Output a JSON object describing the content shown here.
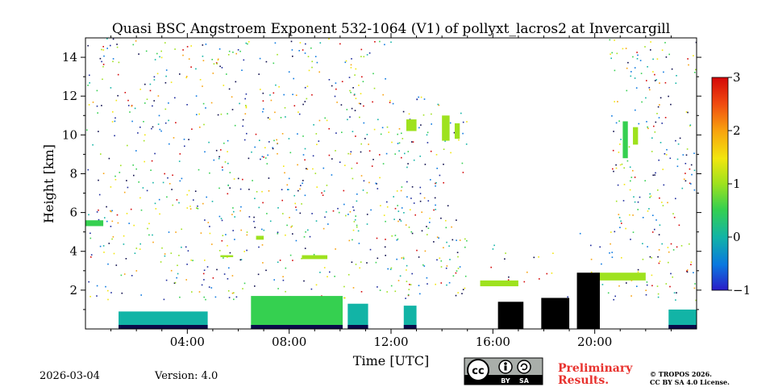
{
  "chart_data": {
    "type": "heatmap",
    "title": "Quasi BSC Angstroem Exponent 532-1064 (V1) of pollyxt_lacros2 at Invercargill",
    "xlabel": "Time [UTC]",
    "ylabel": "Height [km]",
    "xlim_hours": [
      0,
      24
    ],
    "ylim_km": [
      0,
      15
    ],
    "xticks": [
      {
        "value": 4,
        "label": "04:00"
      },
      {
        "value": 8,
        "label": "08:00"
      },
      {
        "value": 12,
        "label": "12:00"
      },
      {
        "value": 16,
        "label": "16:00"
      },
      {
        "value": 20,
        "label": "20:00"
      }
    ],
    "yticks": [
      {
        "value": 2,
        "label": "2"
      },
      {
        "value": 4,
        "label": "4"
      },
      {
        "value": 6,
        "label": "6"
      },
      {
        "value": 8,
        "label": "8"
      },
      {
        "value": 10,
        "label": "10"
      },
      {
        "value": 12,
        "label": "12"
      },
      {
        "value": 14,
        "label": "14"
      }
    ],
    "colorbar": {
      "range": [
        -1,
        3
      ],
      "ticks": [
        {
          "value": -1,
          "label": "−1"
        },
        {
          "value": 0,
          "label": "0"
        },
        {
          "value": 1,
          "label": "1"
        },
        {
          "value": 2,
          "label": "2"
        },
        {
          "value": 3,
          "label": "3"
        }
      ],
      "colormap": [
        "#2b1cc8",
        "#0a78e0",
        "#12b4a6",
        "#35d050",
        "#9ee21e",
        "#f2e60e",
        "#f8a20e",
        "#f04810",
        "#d40808"
      ]
    },
    "aerosol_layers": [
      {
        "t0": 0.0,
        "t1": 0.7,
        "h0": 5.3,
        "h1": 5.6,
        "value": 0.7
      },
      {
        "t0": 5.3,
        "t1": 5.8,
        "h0": 3.7,
        "h1": 3.8,
        "value": 0.8
      },
      {
        "t0": 6.7,
        "t1": 7.0,
        "h0": 4.6,
        "h1": 4.8,
        "value": 0.9
      },
      {
        "t0": 8.5,
        "t1": 9.5,
        "h0": 3.6,
        "h1": 3.8,
        "value": 0.9
      },
      {
        "t0": 12.6,
        "t1": 13.0,
        "h0": 10.2,
        "h1": 10.8,
        "value": 0.8
      },
      {
        "t0": 14.0,
        "t1": 14.3,
        "h0": 9.7,
        "h1": 11.0,
        "value": 1.2
      },
      {
        "t0": 14.5,
        "t1": 14.7,
        "h0": 9.8,
        "h1": 10.6,
        "value": 1.1
      },
      {
        "t0": 21.1,
        "t1": 21.3,
        "h0": 8.8,
        "h1": 10.7,
        "value": 0.7
      },
      {
        "t0": 21.5,
        "t1": 21.7,
        "h0": 9.5,
        "h1": 10.4,
        "value": 1.0
      },
      {
        "t0": 20.0,
        "t1": 22.0,
        "h0": 2.5,
        "h1": 2.9,
        "value": 0.8
      },
      {
        "t0": 15.5,
        "t1": 17.0,
        "h0": 2.2,
        "h1": 2.5,
        "value": 0.9
      }
    ],
    "boundary_layer": [
      {
        "t0": 1.3,
        "t1": 4.8,
        "h0": 0.0,
        "h1": 0.9,
        "value": -0.2
      },
      {
        "t0": 6.5,
        "t1": 10.1,
        "h0": 0.0,
        "h1": 1.7,
        "value": 0.3
      },
      {
        "t0": 10.3,
        "t1": 11.1,
        "h0": 0.0,
        "h1": 1.3,
        "value": 0.2
      },
      {
        "t0": 12.5,
        "t1": 13.0,
        "h0": 0.0,
        "h1": 1.2,
        "value": -0.1
      },
      {
        "t0": 22.9,
        "t1": 24.0,
        "h0": 0.0,
        "h1": 1.0,
        "value": -0.1
      }
    ],
    "no_data_columns": [
      {
        "t0": 17.9,
        "t1": 19.0,
        "h0": 0.0,
        "h1": 1.6
      },
      {
        "t0": 19.3,
        "t1": 20.2,
        "h0": 0.0,
        "h1": 2.9
      },
      {
        "t0": 16.2,
        "t1": 17.2,
        "h0": 0.0,
        "h1": 1.4
      }
    ]
  },
  "footer": {
    "date": "2026-03-04",
    "version": "Version: 4.0",
    "cc_text": "cc",
    "cc_by": "BY",
    "cc_sa": "SA",
    "preliminary_line1": "Preliminary",
    "preliminary_line2": "Results.",
    "copyright_line1": "© TROPOS 2026.",
    "copyright_line2": "CC BY SA 4.0 License."
  }
}
